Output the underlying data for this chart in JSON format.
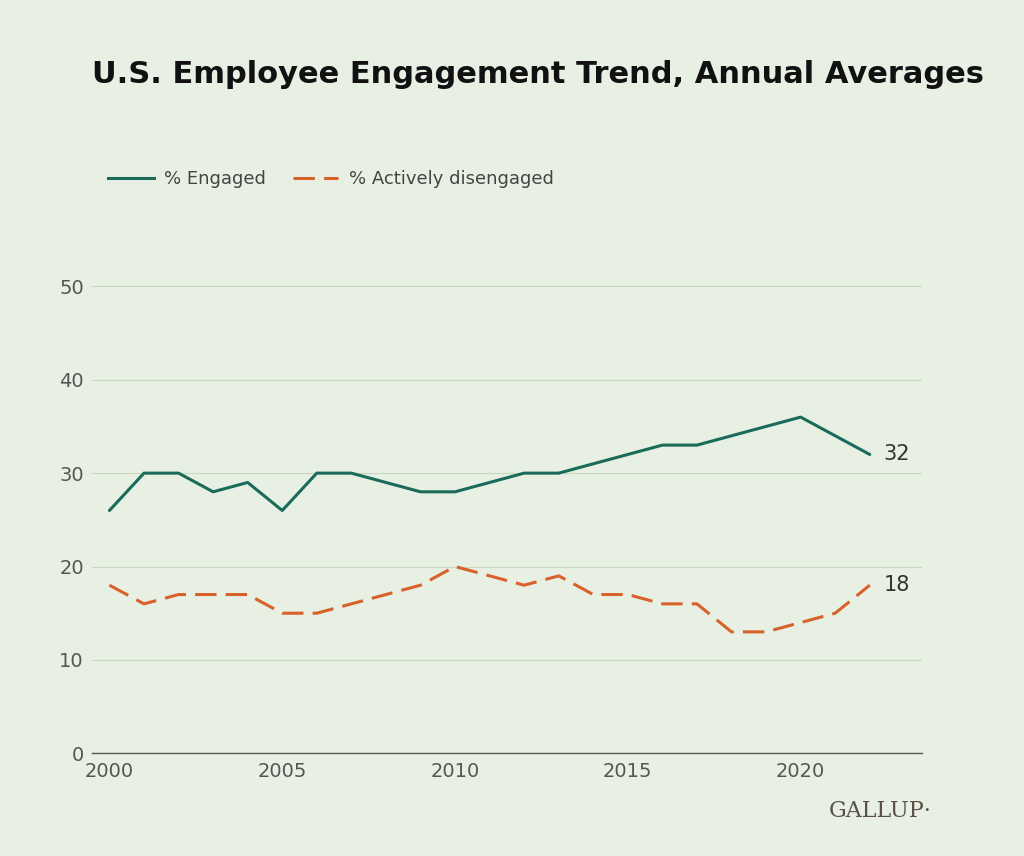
{
  "title": "U.S. Employee Engagement Trend, Annual Averages",
  "background_color": "#e8f0e4",
  "engaged_color": "#1a6b5a",
  "disengaged_color": "#d9612a",
  "gallup_text": "GALLUP·",
  "legend_engaged": "% Engaged",
  "legend_disengaged": "% Actively disengaged",
  "years": [
    2000,
    2001,
    2002,
    2003,
    2004,
    2005,
    2006,
    2007,
    2008,
    2009,
    2010,
    2011,
    2012,
    2013,
    2014,
    2015,
    2016,
    2017,
    2018,
    2019,
    2020,
    2021,
    2022
  ],
  "engaged": [
    26,
    30,
    30,
    28,
    29,
    26,
    30,
    30,
    29,
    28,
    28,
    29,
    30,
    30,
    31,
    32,
    33,
    33,
    34,
    35,
    36,
    34,
    32
  ],
  "disengaged": [
    18,
    16,
    17,
    17,
    17,
    15,
    15,
    16,
    17,
    18,
    20,
    19,
    18,
    19,
    17,
    17,
    16,
    16,
    13,
    13,
    14,
    15,
    18
  ],
  "yticks": [
    0,
    10,
    20,
    30,
    40,
    50
  ],
  "xticks": [
    2000,
    2005,
    2010,
    2015,
    2020
  ],
  "ylim": [
    0,
    55
  ],
  "xlim": [
    1999.5,
    2023.5
  ],
  "end_label_engaged": "32",
  "end_label_disengaged": "18",
  "title_fontsize": 22,
  "axis_fontsize": 14,
  "legend_fontsize": 13,
  "label_fontsize": 15,
  "gallup_fontsize": 16
}
